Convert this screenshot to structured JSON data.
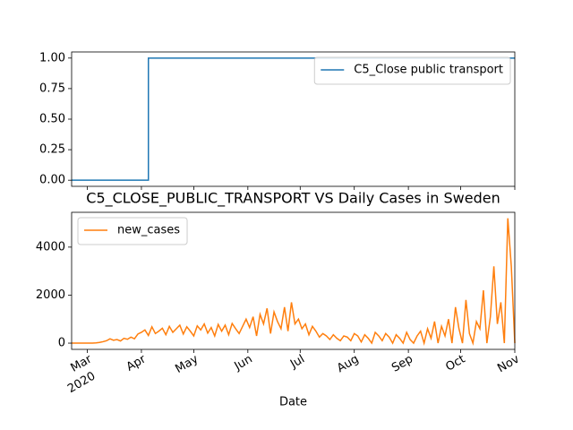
{
  "chart_data": [
    {
      "type": "line",
      "series": [
        {
          "name": "C5_Close public transport",
          "color": "#1f77b4",
          "x": [
            0,
            44,
            44,
            254
          ],
          "values": [
            0,
            0,
            1,
            1
          ]
        }
      ],
      "xlim": [
        0,
        254
      ],
      "xticks": [
        9,
        40,
        70,
        101,
        131,
        162,
        193,
        223,
        254
      ],
      "ylim": [
        -0.05,
        1.05
      ],
      "yticks": [
        {
          "value": 0,
          "label": "0.00"
        },
        {
          "value": 0.25,
          "label": "0.25"
        },
        {
          "value": 0.5,
          "label": "0.50"
        },
        {
          "value": 0.75,
          "label": "0.75"
        },
        {
          "value": 1,
          "label": "1.00"
        }
      ],
      "legend": "upper right"
    },
    {
      "type": "line",
      "title": "C5_CLOSE_PUBLIC_TRANSPORT VS Daily Cases in Sweden",
      "xlabel": "Date",
      "series": [
        {
          "name": "new_cases",
          "color": "#ff7f0e",
          "x": [
            0,
            2,
            4,
            6,
            8,
            10,
            12,
            14,
            16,
            18,
            20,
            22,
            24,
            26,
            28,
            30,
            32,
            34,
            36,
            38,
            40,
            42,
            44,
            46,
            48,
            50,
            52,
            54,
            56,
            58,
            60,
            62,
            64,
            66,
            68,
            70,
            72,
            74,
            76,
            78,
            80,
            82,
            84,
            86,
            88,
            90,
            92,
            94,
            96,
            98,
            100,
            102,
            104,
            106,
            108,
            110,
            112,
            114,
            116,
            118,
            120,
            122,
            124,
            126,
            128,
            130,
            132,
            134,
            136,
            138,
            140,
            142,
            144,
            146,
            148,
            150,
            152,
            154,
            156,
            158,
            160,
            162,
            164,
            166,
            168,
            170,
            172,
            174,
            176,
            178,
            180,
            182,
            184,
            186,
            188,
            190,
            192,
            194,
            196,
            198,
            200,
            202,
            204,
            206,
            208,
            210,
            212,
            214,
            216,
            218,
            220,
            222,
            224,
            226,
            228,
            230,
            232,
            234,
            236,
            238,
            240,
            242,
            244,
            246,
            248,
            250,
            252,
            254
          ],
          "values": [
            0,
            0,
            0,
            0,
            0,
            0,
            0,
            10,
            30,
            60,
            100,
            180,
            120,
            150,
            90,
            200,
            160,
            250,
            180,
            380,
            450,
            550,
            320,
            680,
            400,
            500,
            620,
            350,
            700,
            450,
            600,
            750,
            380,
            680,
            500,
            300,
            720,
            550,
            800,
            420,
            650,
            300,
            780,
            500,
            750,
            350,
            820,
            600,
            400,
            700,
            1000,
            650,
            1100,
            300,
            1200,
            800,
            1450,
            400,
            1300,
            900,
            600,
            1500,
            500,
            1700,
            800,
            1000,
            600,
            800,
            350,
            700,
            500,
            250,
            400,
            300,
            150,
            350,
            200,
            100,
            300,
            250,
            100,
            400,
            300,
            50,
            350,
            200,
            0,
            450,
            300,
            100,
            400,
            250,
            0,
            350,
            200,
            0,
            450,
            150,
            0,
            300,
            500,
            0,
            600,
            200,
            900,
            0,
            700,
            300,
            1000,
            0,
            1500,
            600,
            0,
            1800,
            400,
            0,
            900,
            600,
            2200,
            0,
            1100,
            3200,
            800,
            1700,
            0,
            5200,
            3200,
            0
          ]
        }
      ],
      "xlim": [
        0,
        254
      ],
      "xticks": [
        {
          "value": 9,
          "label": "Mar"
        },
        {
          "value": 40,
          "label": "Apr"
        },
        {
          "value": 70,
          "label": "May"
        },
        {
          "value": 101,
          "label": "Jun"
        },
        {
          "value": 131,
          "label": "Jul"
        },
        {
          "value": 162,
          "label": "Aug"
        },
        {
          "value": 193,
          "label": "Sep"
        },
        {
          "value": 223,
          "label": "Oct"
        },
        {
          "value": 254,
          "label": "Nov"
        }
      ],
      "xtick_year": "2020",
      "ylim": [
        -260,
        5450
      ],
      "yticks": [
        0,
        2000,
        4000
      ],
      "legend": "upper left"
    }
  ]
}
